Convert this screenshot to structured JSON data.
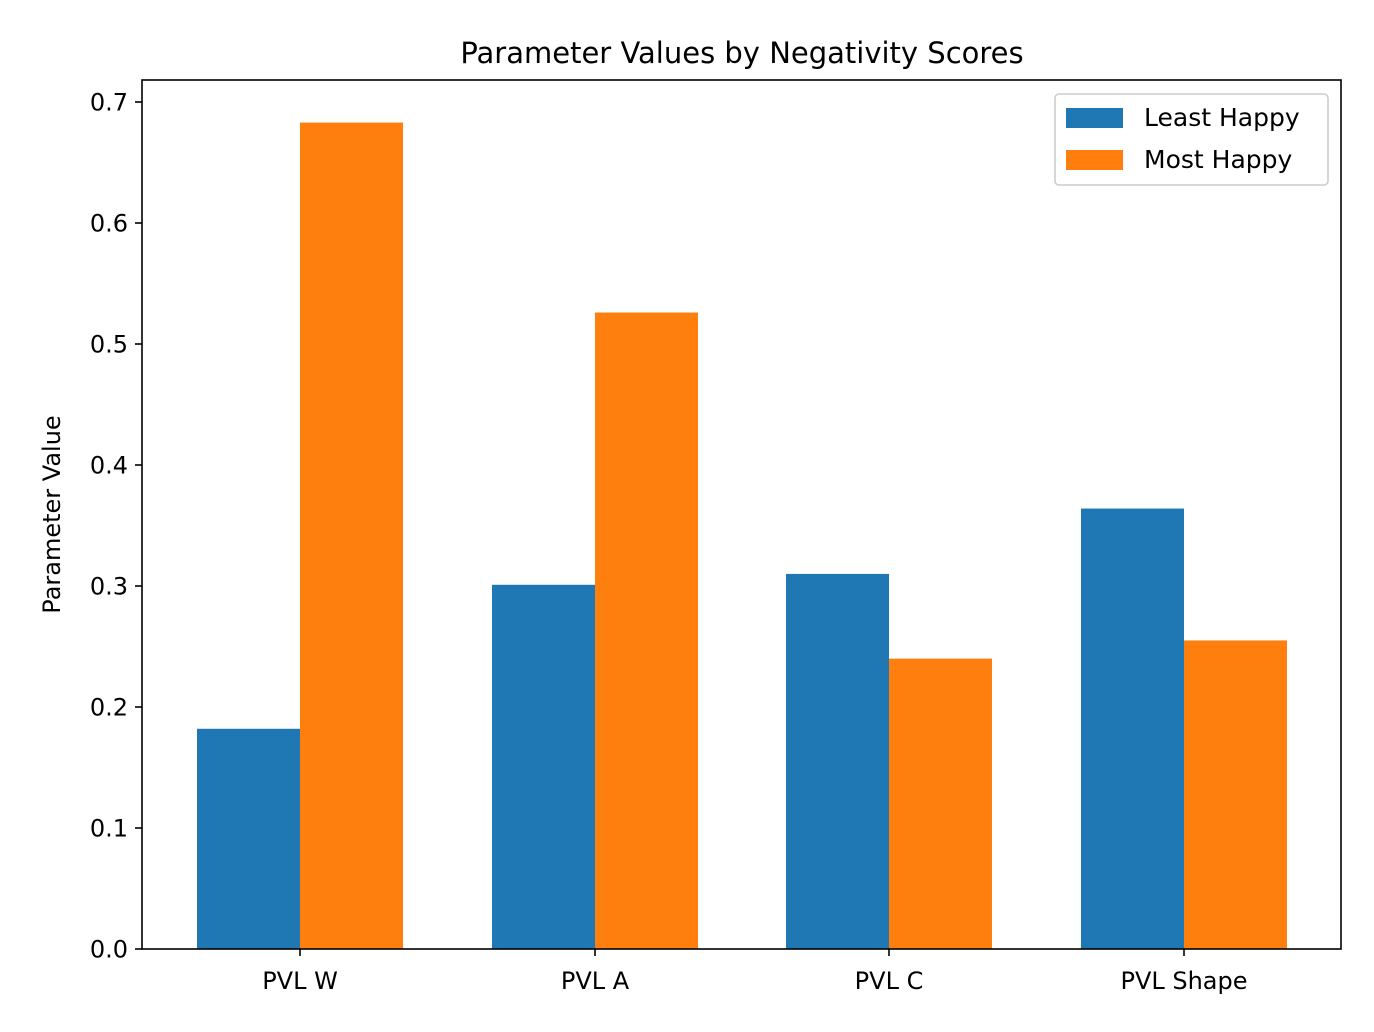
{
  "chart_data": {
    "type": "bar",
    "title": "Parameter Values by Negativity Scores",
    "xlabel": "",
    "ylabel": "Parameter Value",
    "categories": [
      "PVL W",
      "PVL A",
      "PVL C",
      "PVL Shape"
    ],
    "series": [
      {
        "name": "Least Happy",
        "color": "#1f77b4",
        "values": [
          0.182,
          0.301,
          0.31,
          0.364
        ]
      },
      {
        "name": "Most Happy",
        "color": "#ff7f0e",
        "values": [
          0.683,
          0.526,
          0.24,
          0.255
        ]
      }
    ],
    "ylim": [
      0,
      0.72
    ],
    "yticks": [
      0.0,
      0.1,
      0.2,
      0.3,
      0.4,
      0.5,
      0.6,
      0.7
    ],
    "ytick_labels": [
      "0.0",
      "0.1",
      "0.2",
      "0.3",
      "0.4",
      "0.5",
      "0.6",
      "0.7"
    ],
    "grid": false,
    "legend_position": "top-right"
  }
}
